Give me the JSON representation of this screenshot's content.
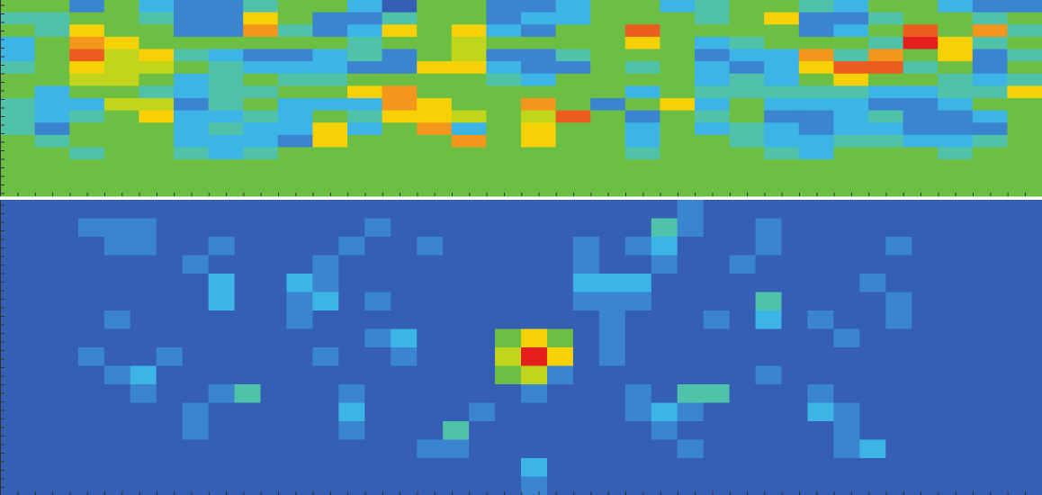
{
  "chart_data": [
    {
      "type": "heatmap",
      "zlim": [
        0,
        10
      ],
      "colors": [
        "#2a3f98",
        "#3a74c8",
        "#3cc4ee",
        "#6dbf44",
        "#f8e400",
        "#f08422",
        "#e51f1d"
      ],
      "values": [
        [
          5,
          5,
          2,
          5,
          3,
          2,
          2,
          4,
          5,
          5,
          3,
          1,
          5,
          5,
          2,
          2,
          3,
          5,
          5,
          3,
          4,
          5,
          5,
          4,
          3,
          5,
          5,
          3,
          2,
          2
        ],
        [
          4,
          4,
          5,
          5,
          4,
          2,
          2,
          7,
          5,
          2,
          2,
          4,
          5,
          5,
          2,
          3,
          3,
          5,
          5,
          5,
          4,
          5,
          7,
          2,
          2,
          4,
          5,
          5,
          4,
          5
        ],
        [
          5,
          4,
          7,
          5,
          5,
          2,
          2,
          8,
          4,
          2,
          3,
          7,
          5,
          7,
          3,
          2,
          5,
          5,
          9,
          5,
          5,
          5,
          5,
          2,
          3,
          5,
          9,
          5,
          8,
          4
        ],
        [
          3,
          5,
          8,
          7,
          5,
          5,
          5,
          5,
          5,
          5,
          4,
          5,
          5,
          6,
          5,
          5,
          5,
          5,
          7,
          5,
          3,
          4,
          5,
          5,
          5,
          4,
          10,
          7,
          4,
          5
        ],
        [
          3,
          5,
          9,
          6,
          7,
          4,
          3,
          2,
          2,
          3,
          4,
          2,
          5,
          6,
          2,
          2,
          4,
          5,
          5,
          5,
          2,
          3,
          3,
          8,
          4,
          8,
          5,
          7,
          2,
          4
        ],
        [
          4,
          5,
          7,
          6,
          6,
          5,
          4,
          3,
          3,
          3,
          2,
          2,
          7,
          7,
          3,
          2,
          2,
          5,
          4,
          5,
          3,
          2,
          3,
          7,
          9,
          9,
          4,
          5,
          2,
          5
        ],
        [
          5,
          5,
          6,
          6,
          5,
          3,
          4,
          5,
          4,
          4,
          5,
          5,
          5,
          5,
          4,
          3,
          5,
          5,
          5,
          5,
          3,
          4,
          3,
          5,
          7,
          5,
          5,
          4,
          3,
          4
        ],
        [
          5,
          3,
          5,
          5,
          4,
          3,
          4,
          4,
          5,
          5,
          7,
          8,
          5,
          5,
          5,
          5,
          5,
          5,
          3,
          5,
          4,
          4,
          4,
          4,
          4,
          3,
          3,
          4,
          4,
          7
        ],
        [
          4,
          3,
          3,
          6,
          6,
          2,
          4,
          5,
          3,
          3,
          3,
          8,
          7,
          5,
          5,
          8,
          5,
          2,
          5,
          7,
          3,
          5,
          3,
          3,
          3,
          2,
          2,
          3,
          5,
          5
        ],
        [
          4,
          3,
          4,
          5,
          7,
          3,
          3,
          4,
          3,
          5,
          4,
          7,
          7,
          6,
          5,
          6,
          9,
          5,
          2,
          5,
          4,
          5,
          2,
          2,
          3,
          4,
          2,
          2,
          3,
          5
        ],
        [
          4,
          2,
          5,
          5,
          5,
          3,
          4,
          3,
          3,
          7,
          3,
          5,
          8,
          3,
          5,
          7,
          5,
          5,
          3,
          5,
          3,
          4,
          3,
          2,
          3,
          3,
          2,
          2,
          2,
          5
        ],
        [
          5,
          4,
          5,
          5,
          5,
          3,
          3,
          3,
          2,
          7,
          5,
          5,
          5,
          8,
          5,
          7,
          5,
          5,
          3,
          5,
          5,
          4,
          3,
          3,
          4,
          4,
          3,
          3,
          4,
          5
        ],
        [
          5,
          5,
          4,
          5,
          5,
          4,
          3,
          4,
          5,
          5,
          5,
          5,
          5,
          5,
          5,
          5,
          5,
          5,
          4,
          5,
          5,
          5,
          4,
          3,
          5,
          5,
          5,
          4,
          5,
          5
        ],
        [
          5,
          5,
          5,
          5,
          5,
          5,
          5,
          5,
          5,
          5,
          5,
          5,
          5,
          5,
          5,
          5,
          5,
          5,
          5,
          5,
          5,
          5,
          5,
          5,
          5,
          5,
          5,
          5,
          5,
          5
        ],
        [
          5,
          5,
          5,
          5,
          5,
          5,
          5,
          5,
          5,
          5,
          5,
          5,
          5,
          5,
          5,
          5,
          5,
          5,
          5,
          5,
          5,
          5,
          5,
          5,
          5,
          5,
          5,
          5,
          5,
          5
        ],
        [
          5,
          5,
          5,
          5,
          5,
          5,
          5,
          5,
          5,
          5,
          5,
          5,
          5,
          5,
          5,
          5,
          5,
          5,
          5,
          5,
          5,
          5,
          5,
          5,
          5,
          5,
          5,
          5,
          5,
          5
        ]
      ]
    },
    {
      "type": "heatmap",
      "zlim": [
        0,
        10
      ],
      "colors": [
        "#2a3f98",
        "#3a74c8",
        "#3cc4ee",
        "#6dbf44",
        "#f8e400",
        "#f08422",
        "#e51f1d"
      ],
      "values": [
        [
          1,
          1,
          1,
          1,
          1,
          1,
          1,
          1,
          1,
          1,
          1,
          1,
          1,
          1,
          1,
          1,
          1,
          1,
          1,
          1,
          1,
          1,
          1,
          1,
          1,
          1,
          2,
          1,
          1,
          1,
          1,
          1,
          1,
          1,
          1,
          1,
          1,
          1,
          1,
          1
        ],
        [
          1,
          1,
          1,
          2,
          2,
          2,
          1,
          1,
          1,
          1,
          1,
          1,
          1,
          1,
          2,
          1,
          1,
          1,
          1,
          1,
          1,
          1,
          1,
          1,
          1,
          4,
          2,
          1,
          1,
          2,
          1,
          1,
          1,
          1,
          1,
          1,
          1,
          1,
          1,
          1
        ],
        [
          1,
          1,
          1,
          1,
          2,
          2,
          1,
          1,
          2,
          1,
          1,
          1,
          1,
          2,
          1,
          1,
          2,
          1,
          1,
          1,
          1,
          1,
          2,
          1,
          2,
          3,
          1,
          1,
          1,
          2,
          1,
          1,
          1,
          1,
          2,
          1,
          1,
          1,
          1,
          1
        ],
        [
          1,
          1,
          1,
          1,
          1,
          1,
          1,
          2,
          1,
          1,
          1,
          1,
          2,
          1,
          1,
          1,
          1,
          1,
          1,
          1,
          1,
          1,
          2,
          1,
          1,
          2,
          1,
          1,
          2,
          1,
          1,
          1,
          1,
          1,
          1,
          1,
          1,
          1,
          1,
          1
        ],
        [
          1,
          1,
          1,
          1,
          1,
          1,
          1,
          1,
          3,
          1,
          1,
          3,
          2,
          1,
          1,
          1,
          1,
          1,
          1,
          1,
          1,
          1,
          3,
          3,
          3,
          1,
          1,
          1,
          1,
          1,
          1,
          1,
          1,
          2,
          1,
          1,
          1,
          1,
          1,
          1
        ],
        [
          1,
          1,
          1,
          1,
          1,
          1,
          1,
          1,
          3,
          1,
          1,
          2,
          3,
          1,
          2,
          1,
          1,
          1,
          1,
          1,
          1,
          1,
          2,
          2,
          2,
          1,
          1,
          1,
          1,
          4,
          1,
          1,
          1,
          1,
          2,
          1,
          1,
          1,
          1,
          1
        ],
        [
          1,
          1,
          1,
          1,
          2,
          1,
          1,
          1,
          1,
          1,
          1,
          2,
          1,
          1,
          1,
          1,
          1,
          1,
          1,
          1,
          1,
          1,
          1,
          2,
          1,
          1,
          1,
          2,
          1,
          3,
          1,
          2,
          1,
          1,
          2,
          1,
          1,
          1,
          1,
          1
        ],
        [
          1,
          1,
          1,
          1,
          1,
          1,
          1,
          1,
          1,
          1,
          1,
          1,
          1,
          1,
          2,
          3,
          1,
          1,
          1,
          5,
          7,
          5,
          1,
          2,
          1,
          1,
          1,
          1,
          1,
          1,
          1,
          1,
          2,
          1,
          1,
          1,
          1,
          1,
          1,
          1
        ],
        [
          1,
          1,
          1,
          2,
          1,
          1,
          2,
          1,
          1,
          1,
          1,
          1,
          2,
          1,
          1,
          2,
          1,
          1,
          1,
          6,
          10,
          7,
          1,
          2,
          1,
          1,
          1,
          1,
          1,
          1,
          1,
          1,
          1,
          1,
          1,
          1,
          1,
          1,
          1,
          1
        ],
        [
          1,
          1,
          1,
          1,
          2,
          3,
          1,
          1,
          1,
          1,
          1,
          1,
          1,
          1,
          1,
          1,
          1,
          1,
          1,
          5,
          6,
          2,
          1,
          1,
          1,
          1,
          1,
          1,
          1,
          2,
          1,
          1,
          1,
          1,
          1,
          1,
          1,
          1,
          1,
          1
        ],
        [
          1,
          1,
          1,
          1,
          1,
          2,
          1,
          1,
          2,
          4,
          1,
          1,
          1,
          2,
          1,
          1,
          1,
          1,
          1,
          1,
          2,
          1,
          1,
          1,
          2,
          1,
          4,
          4,
          1,
          1,
          1,
          2,
          1,
          1,
          1,
          1,
          1,
          1,
          1,
          1
        ],
        [
          1,
          1,
          1,
          1,
          1,
          1,
          1,
          2,
          1,
          1,
          1,
          1,
          1,
          3,
          1,
          1,
          1,
          1,
          2,
          1,
          1,
          1,
          1,
          1,
          2,
          3,
          2,
          1,
          1,
          1,
          1,
          3,
          2,
          1,
          1,
          1,
          1,
          1,
          1,
          1
        ],
        [
          1,
          1,
          1,
          1,
          1,
          1,
          1,
          2,
          1,
          1,
          1,
          1,
          1,
          2,
          1,
          1,
          1,
          4,
          1,
          1,
          1,
          1,
          1,
          1,
          1,
          2,
          1,
          1,
          1,
          1,
          1,
          1,
          2,
          1,
          1,
          1,
          1,
          1,
          1,
          1
        ],
        [
          1,
          1,
          1,
          1,
          1,
          1,
          1,
          1,
          1,
          1,
          1,
          1,
          1,
          1,
          1,
          1,
          2,
          2,
          1,
          1,
          1,
          1,
          1,
          1,
          1,
          1,
          2,
          1,
          1,
          1,
          1,
          1,
          2,
          3,
          1,
          1,
          1,
          1,
          1,
          1
        ],
        [
          1,
          1,
          1,
          1,
          1,
          1,
          1,
          1,
          1,
          1,
          1,
          1,
          1,
          1,
          1,
          1,
          1,
          1,
          1,
          1,
          3,
          1,
          1,
          1,
          1,
          1,
          1,
          1,
          1,
          1,
          1,
          1,
          1,
          1,
          1,
          1,
          1,
          1,
          1,
          1
        ],
        [
          1,
          1,
          1,
          1,
          1,
          1,
          1,
          1,
          1,
          1,
          1,
          1,
          1,
          1,
          1,
          1,
          1,
          1,
          1,
          1,
          2,
          1,
          1,
          1,
          1,
          1,
          1,
          1,
          1,
          1,
          1,
          1,
          1,
          1,
          1,
          1,
          1,
          1,
          1,
          1
        ]
      ]
    }
  ]
}
